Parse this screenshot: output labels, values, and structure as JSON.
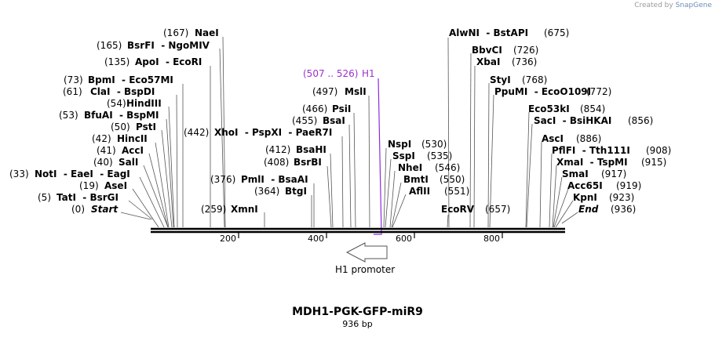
{
  "credit": {
    "prefix": "Created by",
    "brand": "SnapGene"
  },
  "title": "MDH1-PGK-GFP-miR9",
  "length_label": "936 bp",
  "axis_ticks": [
    "200",
    "400",
    "600",
    "800"
  ],
  "feature": {
    "name": "H1 promoter"
  },
  "primer": {
    "range": "(507 .. 526)",
    "name": "H1"
  },
  "sites": [
    {
      "pos": "(167)",
      "text": "NaeI"
    },
    {
      "pos": "(165)",
      "text": "BsrFI  - NgoMIV"
    },
    {
      "pos": "(135)",
      "text": "ApoI  - EcoRI"
    },
    {
      "pos": "(73)",
      "text": "BpmI  - Eco57MI"
    },
    {
      "pos": "(61)",
      "text": "ClaI  - BspDI"
    },
    {
      "pos": "(54)",
      "text": "HindIII"
    },
    {
      "pos": "(53)",
      "text": "BfuAI  - BspMI"
    },
    {
      "pos": "(50)",
      "text": "PstI"
    },
    {
      "pos": "(42)",
      "text": "HincII"
    },
    {
      "pos": "(41)",
      "text": "AccI"
    },
    {
      "pos": "(40)",
      "text": "SalI"
    },
    {
      "pos": "(33)",
      "text": "NotI  - EaeI  - EagI"
    },
    {
      "pos": "(19)",
      "text": "AseI"
    },
    {
      "pos": "(5)",
      "text": "TatI  - BsrGI"
    },
    {
      "pos": "(0)",
      "text": "Start"
    },
    {
      "pos": "(442)",
      "text": "XhoI  - PspXI  - PaeR7I"
    },
    {
      "pos": "(376)",
      "text": "PmlI  - BsaAI"
    },
    {
      "pos": "(259)",
      "text": "XmnI"
    },
    {
      "pos": "(497)",
      "text": "MslI"
    },
    {
      "pos": "(466)",
      "text": "PsiI"
    },
    {
      "pos": "(455)",
      "text": "BsaI"
    },
    {
      "pos": "(412)",
      "text": "BsaHI"
    },
    {
      "pos": "(408)",
      "text": "BsrBI"
    },
    {
      "pos": "(364)",
      "text": "BtgI"
    },
    {
      "pos": "(530)",
      "text": "NspI"
    },
    {
      "pos": "(535)",
      "text": "SspI"
    },
    {
      "pos": "(546)",
      "text": "NheI"
    },
    {
      "pos": "(550)",
      "text": "BmtI"
    },
    {
      "pos": "(551)",
      "text": "AflII"
    },
    {
      "pos": "(657)",
      "text": "EcoRV"
    },
    {
      "pos": "(675)",
      "text": "AlwNI  - BstAPI"
    },
    {
      "pos": "(726)",
      "text": "BbvCI"
    },
    {
      "pos": "(736)",
      "text": "XbaI"
    },
    {
      "pos": "(768)",
      "text": "StyI"
    },
    {
      "pos": "(772)",
      "text": "PpuMI  - EcoO109I"
    },
    {
      "pos": "(854)",
      "text": "Eco53kI"
    },
    {
      "pos": "(856)",
      "text": "SacI  - BsiHKAI"
    },
    {
      "pos": "(886)",
      "text": "AscI"
    },
    {
      "pos": "(908)",
      "text": "PflFI  - Tth111I"
    },
    {
      "pos": "(915)",
      "text": "XmaI  - TspMI"
    },
    {
      "pos": "(917)",
      "text": "SmaI"
    },
    {
      "pos": "(919)",
      "text": "Acc65I"
    },
    {
      "pos": "(923)",
      "text": "KpnI"
    },
    {
      "pos": "(936)",
      "text": "End"
    }
  ]
}
